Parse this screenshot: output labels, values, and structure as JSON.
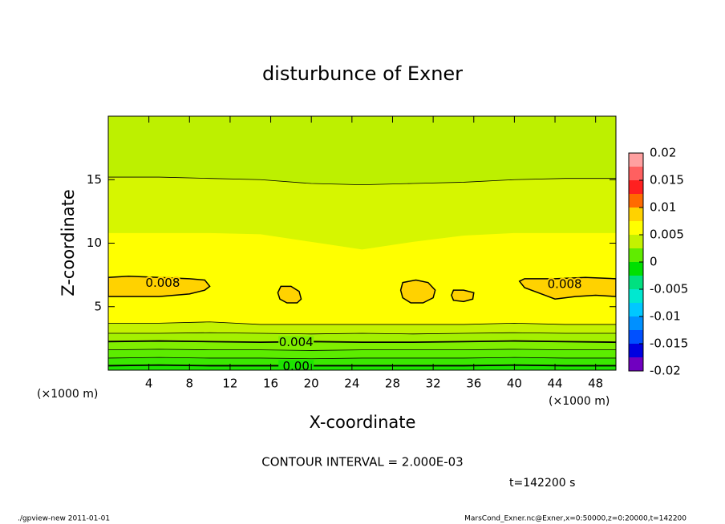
{
  "chart_data": {
    "type": "contour",
    "title": "disturbunce of Exner",
    "xlabel": "X-coordinate",
    "ylabel": "Z-coordinate",
    "x_unit": "(×1000 m)",
    "annotation": "CONTOUR INTERVAL = 2.000E-03",
    "time_label": "t=142200 s",
    "footer_left": "./gpview-new  2011-01-01",
    "footer_right": "MarsCond_Exner.nc@Exner,x=0:50000,z=0:20000,t=142200",
    "xlim": [
      0,
      50
    ],
    "ylim": [
      0,
      20
    ],
    "xticks": [
      4,
      8,
      12,
      16,
      20,
      24,
      28,
      32,
      36,
      40,
      44,
      48
    ],
    "yticks": [
      5,
      10,
      15
    ],
    "top_fill": "#bdf000",
    "x": [
      0,
      5,
      10,
      15,
      20,
      25,
      30,
      35,
      40,
      45,
      50
    ],
    "contours": [
      {
        "y": [
          15.2,
          15.2,
          15.1,
          15.0,
          14.7,
          14.6,
          14.7,
          14.8,
          15.0,
          15.1,
          15.1
        ],
        "fill": "#d6f600",
        "line": true
      },
      {
        "y": [
          10.8,
          10.8,
          10.8,
          10.7,
          10.1,
          9.5,
          10.1,
          10.6,
          10.8,
          10.8,
          10.8
        ],
        "fill": "#ffff00",
        "line": false
      },
      {
        "y": [
          3.7,
          3.7,
          3.8,
          3.6,
          3.6,
          3.6,
          3.6,
          3.6,
          3.7,
          3.6,
          3.6
        ],
        "fill": "#c4f200",
        "line": true
      },
      {
        "y": [
          2.9,
          2.9,
          2.95,
          2.9,
          2.85,
          2.9,
          2.85,
          2.9,
          2.95,
          2.9,
          2.9
        ],
        "fill": "#a4f000",
        "line": true
      },
      {
        "y": [
          2.25,
          2.3,
          2.25,
          2.2,
          2.25,
          2.2,
          2.2,
          2.25,
          2.3,
          2.25,
          2.2
        ],
        "fill": "#80ee00",
        "line": true,
        "label": "0.004"
      },
      {
        "y": [
          1.6,
          1.65,
          1.6,
          1.6,
          1.55,
          1.6,
          1.6,
          1.6,
          1.65,
          1.6,
          1.6
        ],
        "fill": "#5cec00",
        "line": true
      },
      {
        "y": [
          0.95,
          1.0,
          0.95,
          0.95,
          0.9,
          0.95,
          0.95,
          0.95,
          1.0,
          0.95,
          0.95
        ],
        "fill": "#3ae800",
        "line": true
      },
      {
        "y": [
          0.35,
          0.4,
          0.35,
          0.35,
          0.35,
          0.35,
          0.35,
          0.35,
          0.4,
          0.35,
          0.35
        ],
        "fill": "#1ce400",
        "line": true,
        "label": "0.00"
      }
    ],
    "patches": [
      {
        "x": [
          0,
          2,
          5,
          8,
          9.5,
          10,
          9.5,
          8,
          5,
          2,
          0
        ],
        "y": [
          7.3,
          7.4,
          7.3,
          7.2,
          7.1,
          6.6,
          6.3,
          6.0,
          5.8,
          5.8,
          5.8
        ],
        "color": "#ffd200",
        "label": "0.008"
      },
      {
        "x": [
          50,
          47,
          44,
          41,
          40.5,
          41,
          43,
          44,
          46,
          48,
          50
        ],
        "y": [
          7.2,
          7.3,
          7.2,
          7.2,
          7.0,
          6.5,
          5.9,
          5.6,
          5.8,
          5.9,
          5.8
        ],
        "color": "#ffd200",
        "label": "0.008"
      },
      {
        "x": [
          17,
          18,
          18.8,
          19,
          18.6,
          17.6,
          16.9,
          16.7
        ],
        "y": [
          6.6,
          6.6,
          6.2,
          5.6,
          5.3,
          5.3,
          5.6,
          6.1
        ],
        "color": "#ffd200"
      },
      {
        "x": [
          29,
          30.3,
          31.5,
          32.2,
          32,
          31,
          29.8,
          29,
          28.8
        ],
        "y": [
          6.9,
          7.1,
          6.9,
          6.3,
          5.7,
          5.3,
          5.3,
          5.7,
          6.3
        ],
        "color": "#ffd200"
      },
      {
        "x": [
          34,
          35,
          36,
          35.9,
          35,
          34,
          33.8
        ],
        "y": [
          6.3,
          6.3,
          6.1,
          5.6,
          5.4,
          5.5,
          5.9
        ],
        "color": "#ffd200"
      }
    ],
    "colorbar": {
      "lim": [
        -0.02,
        0.02
      ],
      "ticks": [
        0.02,
        0.015,
        0.01,
        0.005,
        0,
        -0.005,
        -0.01,
        -0.015,
        -0.02
      ],
      "colors": [
        "#7000c0",
        "#0000e0",
        "#0050ff",
        "#0090ff",
        "#00c8ff",
        "#00e8d0",
        "#00e080",
        "#00e000",
        "#60ec00",
        "#c4f200",
        "#ffff00",
        "#ffd200",
        "#ff6a00",
        "#ff2020",
        "#ff6060",
        "#ffa0a0"
      ]
    }
  }
}
